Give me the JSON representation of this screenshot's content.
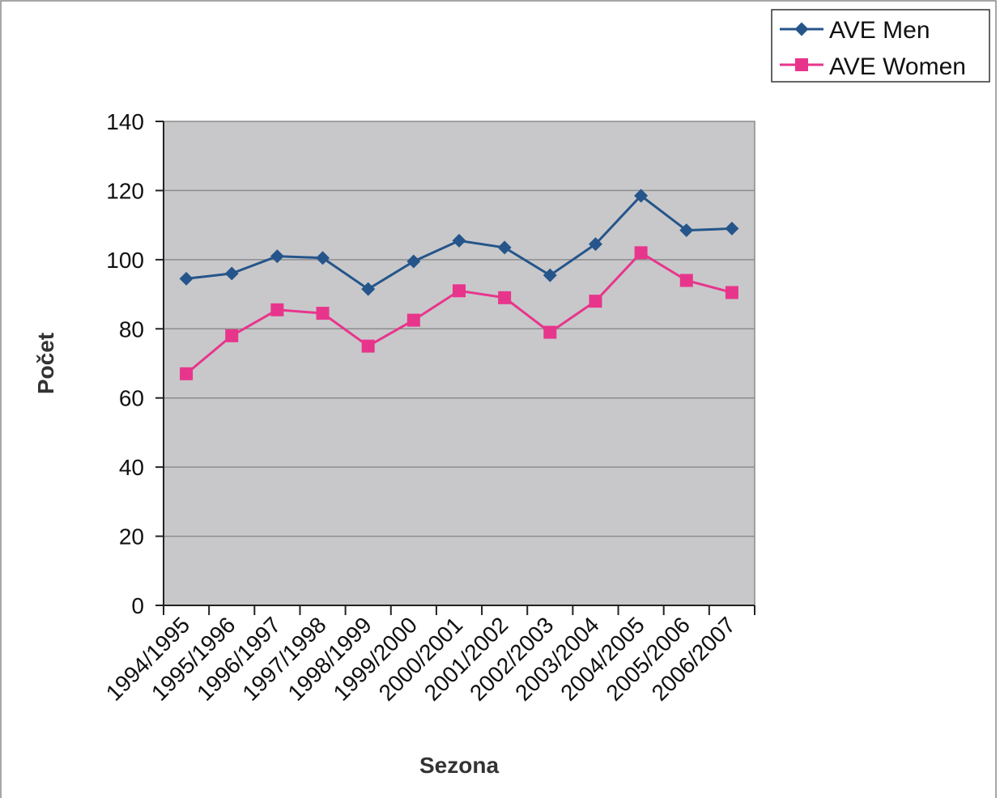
{
  "chart_data": {
    "type": "line",
    "categories": [
      "1994/1995",
      "1995/1996",
      "1996/1997",
      "1997/1998",
      "1998/1999",
      "1999/2000",
      "2000/2001",
      "2001/2002",
      "2002/2003",
      "2003/2004",
      "2004/2005",
      "2005/2006",
      "2006/2007"
    ],
    "series": [
      {
        "name": "AVE Men",
        "color": "#25558a",
        "marker": "diamond",
        "values": [
          94.5,
          96,
          101,
          100.5,
          91.5,
          99.5,
          105.5,
          103.5,
          95.5,
          104.5,
          118.5,
          108.5,
          109
        ]
      },
      {
        "name": "AVE Women",
        "color": "#e8358c",
        "marker": "square",
        "values": [
          67,
          78,
          85.5,
          84.5,
          75,
          82.5,
          91,
          89,
          79,
          88,
          102,
          94,
          90.5
        ]
      }
    ],
    "xlabel": "Sezona",
    "ylabel": "Počet",
    "ylim": [
      0,
      140
    ],
    "yticks": [
      "0",
      "20",
      "40",
      "60",
      "80",
      "100",
      "120",
      "140"
    ],
    "grid": true,
    "plot_background": "#c8c8ca",
    "legend_position": "top-right"
  }
}
